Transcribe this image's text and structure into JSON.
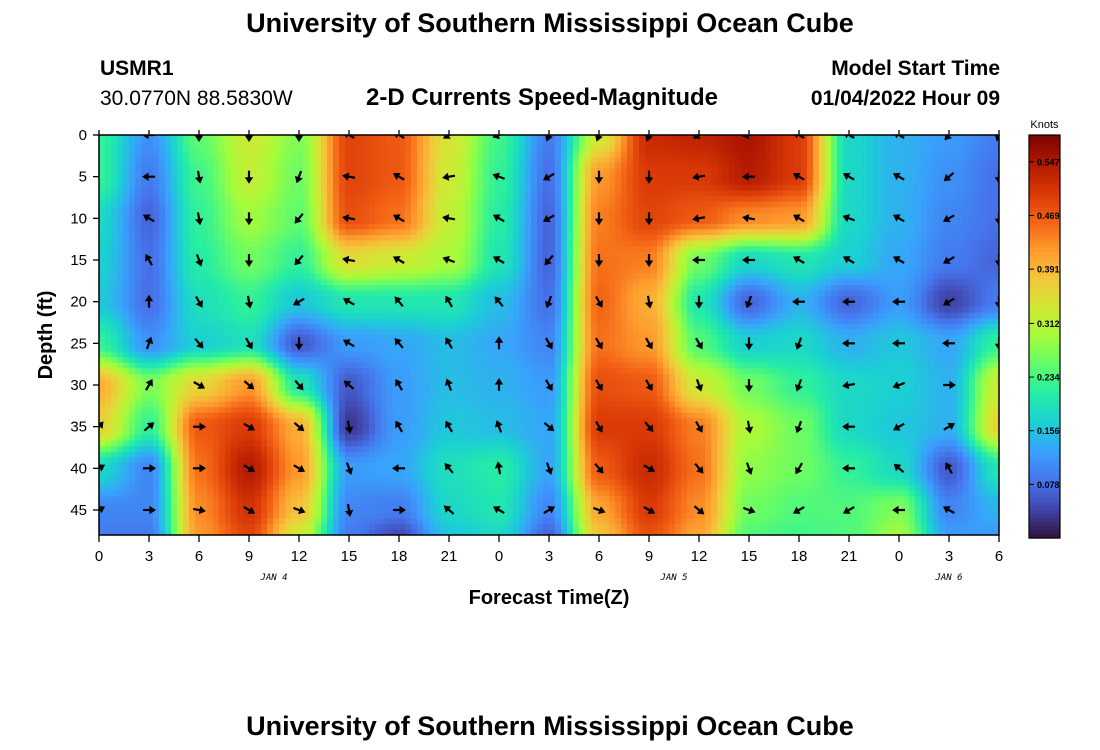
{
  "page": {
    "title": "University of Southern Mississippi Ocean Cube",
    "station_id": "USMR1",
    "coords": "30.0770N  88.5830W",
    "subtitle": "2-D Currents Speed-Magnitude",
    "model_label": "Model Start Time",
    "model_time": "01/04/2022 Hour 09",
    "footer_title": "University of Southern Mississippi Ocean Cube"
  },
  "chart_data": {
    "type": "heatmap",
    "title": "2-D Currents Speed-Magnitude",
    "xlabel": "Forecast Time(Z)",
    "ylabel": "Depth (ft)",
    "x_tick_labels": [
      "0",
      "3",
      "6",
      "9",
      "12",
      "15",
      "18",
      "21",
      "0",
      "3",
      "6",
      "9",
      "12",
      "15",
      "18",
      "21",
      "0",
      "3",
      "6"
    ],
    "date_labels": [
      {
        "text": "JAN 4",
        "at_tick": 3.5
      },
      {
        "text": "JAN 5",
        "at_tick": 11.5
      },
      {
        "text": "JAN 6",
        "at_tick": 17
      }
    ],
    "xlim_hours": [
      0,
      54
    ],
    "y_ticks": [
      0,
      5,
      10,
      15,
      20,
      25,
      30,
      35,
      40,
      45
    ],
    "ylim_ft": [
      0,
      48
    ],
    "y_inverted": true,
    "colorbar": {
      "label": "Knots",
      "ticks": [
        "0.547",
        "0.469",
        "0.391",
        "0.312",
        "0.234",
        "0.156",
        "0.078"
      ],
      "range": [
        0.0,
        0.586
      ],
      "colormap": [
        "#30123b",
        "#4145ab",
        "#4675ed",
        "#39a2fc",
        "#1bcfd4",
        "#24eca6",
        "#61fc6c",
        "#a4fc3b",
        "#d1e834",
        "#f3c63a",
        "#fe9b2d",
        "#f36315",
        "#d93806",
        "#b11901",
        "#7a0402"
      ]
    },
    "speed_field_hours": [
      0,
      3,
      6,
      9,
      12,
      15,
      18,
      21,
      24,
      27,
      30,
      33,
      36,
      39,
      42,
      45,
      48,
      51,
      54
    ],
    "speed_field_depths_ft": [
      0,
      5,
      10,
      15,
      20,
      25,
      30,
      35,
      40,
      45,
      48
    ],
    "speed_knots": [
      [
        0.22,
        0.11,
        0.25,
        0.33,
        0.27,
        0.49,
        0.47,
        0.34,
        0.23,
        0.09,
        0.33,
        0.52,
        0.53,
        0.55,
        0.5,
        0.18,
        0.14,
        0.12,
        0.09
      ],
      [
        0.22,
        0.09,
        0.23,
        0.32,
        0.26,
        0.49,
        0.47,
        0.33,
        0.22,
        0.08,
        0.42,
        0.5,
        0.5,
        0.54,
        0.5,
        0.18,
        0.14,
        0.11,
        0.08
      ],
      [
        0.18,
        0.07,
        0.22,
        0.29,
        0.25,
        0.48,
        0.45,
        0.32,
        0.21,
        0.07,
        0.44,
        0.49,
        0.47,
        0.43,
        0.42,
        0.18,
        0.14,
        0.1,
        0.08
      ],
      [
        0.17,
        0.08,
        0.21,
        0.26,
        0.22,
        0.35,
        0.33,
        0.3,
        0.2,
        0.07,
        0.45,
        0.44,
        0.26,
        0.18,
        0.2,
        0.17,
        0.13,
        0.09,
        0.07
      ],
      [
        0.16,
        0.08,
        0.19,
        0.22,
        0.16,
        0.2,
        0.2,
        0.2,
        0.15,
        0.08,
        0.46,
        0.4,
        0.2,
        0.07,
        0.14,
        0.07,
        0.12,
        0.04,
        0.09
      ],
      [
        0.22,
        0.11,
        0.17,
        0.19,
        0.06,
        0.12,
        0.13,
        0.15,
        0.13,
        0.1,
        0.45,
        0.42,
        0.24,
        0.17,
        0.18,
        0.14,
        0.16,
        0.13,
        0.22
      ],
      [
        0.4,
        0.27,
        0.36,
        0.42,
        0.2,
        0.06,
        0.12,
        0.15,
        0.14,
        0.12,
        0.48,
        0.47,
        0.33,
        0.26,
        0.22,
        0.18,
        0.17,
        0.14,
        0.33
      ],
      [
        0.36,
        0.22,
        0.47,
        0.5,
        0.4,
        0.03,
        0.12,
        0.16,
        0.15,
        0.13,
        0.5,
        0.5,
        0.44,
        0.3,
        0.26,
        0.18,
        0.16,
        0.14,
        0.36
      ],
      [
        0.18,
        0.1,
        0.45,
        0.54,
        0.42,
        0.12,
        0.13,
        0.19,
        0.21,
        0.13,
        0.47,
        0.52,
        0.45,
        0.28,
        0.26,
        0.22,
        0.18,
        0.06,
        0.2
      ],
      [
        0.1,
        0.1,
        0.43,
        0.51,
        0.38,
        0.1,
        0.09,
        0.18,
        0.2,
        0.1,
        0.41,
        0.5,
        0.43,
        0.26,
        0.24,
        0.24,
        0.27,
        0.1,
        0.14
      ],
      [
        0.09,
        0.09,
        0.42,
        0.49,
        0.33,
        0.09,
        0.05,
        0.16,
        0.18,
        0.07,
        0.38,
        0.48,
        0.41,
        0.24,
        0.23,
        0.24,
        0.29,
        0.12,
        0.12
      ]
    ],
    "arrow_hours": [
      0,
      3,
      6,
      9,
      12,
      15,
      18,
      21,
      24,
      27,
      30,
      33,
      36,
      39,
      42,
      45,
      48,
      51,
      54
    ],
    "arrow_depths_ft": [
      0,
      5,
      10,
      15,
      20,
      25,
      30,
      35,
      40,
      45
    ],
    "arrow_direction_deg": [
      [
        null,
        270,
        180,
        180,
        180,
        300,
        300,
        240,
        250,
        200,
        200,
        200,
        240,
        260,
        300,
        300,
        300,
        220,
        200
      ],
      [
        null,
        270,
        170,
        180,
        200,
        280,
        300,
        260,
        290,
        240,
        180,
        180,
        260,
        270,
        300,
        300,
        300,
        230,
        180
      ],
      [
        null,
        300,
        170,
        180,
        220,
        280,
        300,
        280,
        300,
        240,
        180,
        180,
        260,
        280,
        300,
        290,
        300,
        240,
        180
      ],
      [
        null,
        330,
        160,
        180,
        220,
        280,
        300,
        290,
        300,
        220,
        180,
        180,
        270,
        270,
        300,
        300,
        300,
        240,
        180
      ],
      [
        null,
        0,
        150,
        170,
        240,
        300,
        320,
        330,
        320,
        200,
        150,
        170,
        180,
        200,
        270,
        270,
        270,
        240,
        180
      ],
      [
        null,
        20,
        140,
        150,
        180,
        300,
        320,
        330,
        0,
        150,
        150,
        150,
        150,
        180,
        200,
        270,
        270,
        270,
        180
      ],
      [
        null,
        30,
        120,
        130,
        140,
        310,
        330,
        340,
        0,
        150,
        150,
        150,
        160,
        180,
        200,
        260,
        250,
        90,
        null
      ],
      [
        40,
        50,
        90,
        120,
        130,
        170,
        330,
        330,
        340,
        130,
        150,
        140,
        150,
        170,
        200,
        270,
        240,
        60,
        null
      ],
      [
        60,
        90,
        90,
        120,
        120,
        160,
        270,
        320,
        350,
        160,
        140,
        120,
        140,
        160,
        210,
        270,
        310,
        330,
        null
      ],
      [
        60,
        90,
        100,
        120,
        110,
        170,
        90,
        310,
        300,
        60,
        110,
        120,
        130,
        110,
        240,
        240,
        270,
        300,
        null
      ]
    ]
  }
}
